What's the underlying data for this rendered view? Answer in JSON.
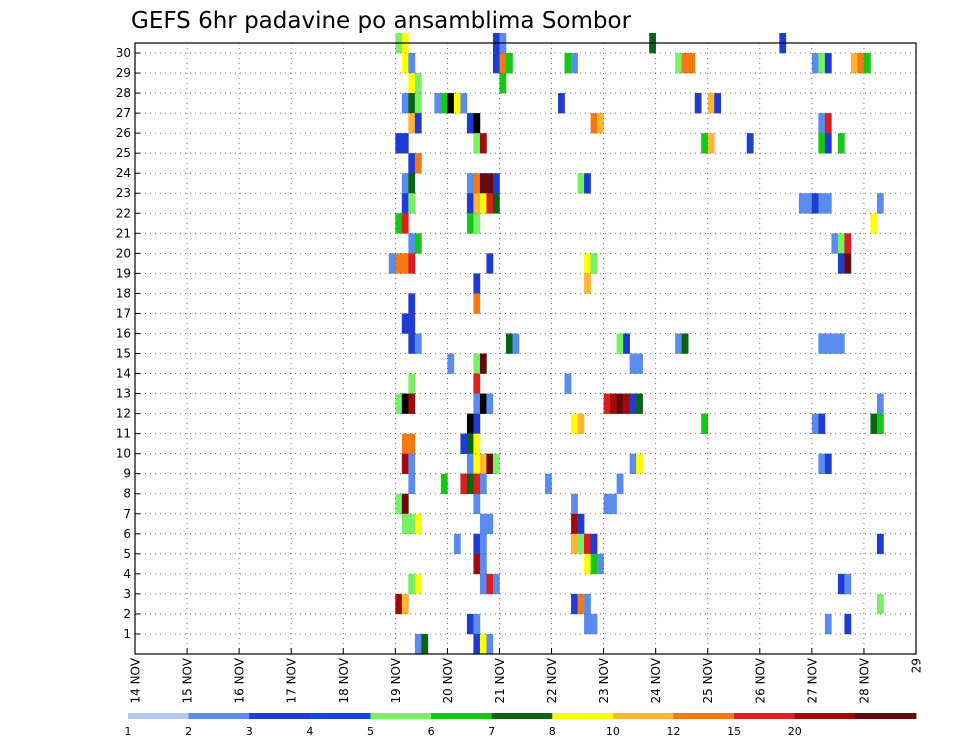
{
  "chart_data": {
    "type": "heatmap",
    "title": "GEFS 6hr padavine po ansamblima Sombor",
    "xlabel": "",
    "ylabel": "",
    "x_tick_labels": [
      "14 NOV",
      "15 NOV",
      "16 NOV",
      "17 NOV",
      "18 NOV",
      "19 NOV",
      "20 NOV",
      "21 NOV",
      "22 NOV",
      "23 NOV",
      "24 NOV",
      "25 NOV",
      "26 NOV",
      "27 NOV",
      "28 NOV",
      "29"
    ],
    "y_tick_labels": [
      "1",
      "2",
      "3",
      "4",
      "5",
      "6",
      "7",
      "8",
      "9",
      "10",
      "11",
      "12",
      "13",
      "14",
      "15",
      "16",
      "17",
      "18",
      "19",
      "20",
      "21",
      "22",
      "23",
      "24",
      "25",
      "26",
      "27",
      "28",
      "29",
      "30"
    ],
    "x_range_steps": [
      0,
      60
    ],
    "y_range": [
      0,
      30
    ],
    "grid": true,
    "legend": {
      "position": "bottom",
      "labels": [
        "1",
        "2",
        "3",
        "4",
        "5",
        "6",
        "7",
        "8",
        "10",
        "12",
        "15",
        "20"
      ],
      "colors": [
        "#b4c8f5",
        "#5a8cf0",
        "#1e3cd2",
        "#1446dc",
        "#78f064",
        "#14c814",
        "#0a6414",
        "#ffff00",
        "#ffb432",
        "#f57814",
        "#dc1e1e",
        "#a00a0a",
        "#640a0a"
      ]
    },
    "palette": [
      "#b4c8f5",
      "#5a8cf0",
      "#1e3cd2",
      "#78f064",
      "#14c814",
      "#0a6414",
      "#ffff00",
      "#ffb432",
      "#f57814",
      "#dc1e1e",
      "#a00a0a",
      "#640a0a"
    ],
    "cells": [
      [
        40,
        30,
        3
      ],
      [
        41,
        30,
        6
      ],
      [
        55,
        30,
        2
      ],
      [
        56,
        30,
        1
      ],
      [
        79,
        30,
        5
      ],
      [
        99,
        30,
        2
      ],
      [
        41,
        29,
        6
      ],
      [
        42,
        29,
        1
      ],
      [
        55,
        29,
        2
      ],
      [
        56,
        29,
        8
      ],
      [
        57,
        29,
        4
      ],
      [
        66,
        29,
        4
      ],
      [
        67,
        29,
        1
      ],
      [
        83,
        29,
        3
      ],
      [
        84,
        29,
        8
      ],
      [
        85,
        29,
        8
      ],
      [
        104,
        29,
        1
      ],
      [
        105,
        29,
        3
      ],
      [
        106,
        29,
        2
      ],
      [
        110,
        29,
        7
      ],
      [
        111,
        29,
        8
      ],
      [
        112,
        29,
        4
      ],
      [
        42,
        28,
        6
      ],
      [
        43,
        28,
        3
      ],
      [
        56,
        28,
        4
      ],
      [
        41,
        27,
        1
      ],
      [
        42,
        27,
        5
      ],
      [
        43,
        27,
        3
      ],
      [
        46,
        27,
        1
      ],
      [
        47,
        27,
        4
      ],
      [
        48,
        27,
        12
      ],
      [
        49,
        27,
        6
      ],
      [
        50,
        27,
        1
      ],
      [
        65,
        27,
        2
      ],
      [
        86,
        27,
        2
      ],
      [
        88,
        27,
        7
      ],
      [
        89,
        27,
        2
      ],
      [
        42,
        26,
        7
      ],
      [
        43,
        26,
        2
      ],
      [
        51,
        26,
        2
      ],
      [
        52,
        26,
        12
      ],
      [
        70,
        26,
        8
      ],
      [
        71,
        26,
        7
      ],
      [
        105,
        26,
        1
      ],
      [
        106,
        26,
        9
      ],
      [
        40,
        25,
        2
      ],
      [
        41,
        25,
        2
      ],
      [
        52,
        25,
        3
      ],
      [
        53,
        25,
        10
      ],
      [
        87,
        25,
        4
      ],
      [
        88,
        25,
        7
      ],
      [
        94,
        25,
        2
      ],
      [
        105,
        25,
        4
      ],
      [
        106,
        25,
        2
      ],
      [
        108,
        25,
        4
      ],
      [
        42,
        24,
        2
      ],
      [
        43,
        24,
        8
      ],
      [
        41,
        23,
        1
      ],
      [
        42,
        23,
        5
      ],
      [
        51,
        23,
        1
      ],
      [
        52,
        23,
        8
      ],
      [
        53,
        23,
        11
      ],
      [
        54,
        23,
        11
      ],
      [
        55,
        23,
        2
      ],
      [
        68,
        23,
        3
      ],
      [
        69,
        23,
        2
      ],
      [
        41,
        22,
        2
      ],
      [
        42,
        22,
        3
      ],
      [
        51,
        22,
        2
      ],
      [
        52,
        22,
        7
      ],
      [
        53,
        22,
        6
      ],
      [
        54,
        22,
        9
      ],
      [
        55,
        22,
        5
      ],
      [
        102,
        22,
        1
      ],
      [
        103,
        22,
        1
      ],
      [
        104,
        22,
        2
      ],
      [
        105,
        22,
        1
      ],
      [
        106,
        22,
        1
      ],
      [
        114,
        22,
        1
      ],
      [
        40,
        21,
        4
      ],
      [
        41,
        21,
        9
      ],
      [
        51,
        21,
        4
      ],
      [
        52,
        21,
        3
      ],
      [
        113,
        21,
        6
      ],
      [
        42,
        20,
        1
      ],
      [
        43,
        20,
        4
      ],
      [
        107,
        20,
        1
      ],
      [
        108,
        20,
        3
      ],
      [
        109,
        20,
        9
      ],
      [
        39,
        19,
        1
      ],
      [
        40,
        19,
        8
      ],
      [
        41,
        19,
        8
      ],
      [
        42,
        19,
        9
      ],
      [
        54,
        19,
        2
      ],
      [
        69,
        19,
        6
      ],
      [
        70,
        19,
        3
      ],
      [
        108,
        19,
        2
      ],
      [
        109,
        19,
        11
      ],
      [
        69,
        18,
        7
      ],
      [
        52,
        18,
        2
      ],
      [
        42,
        17,
        2
      ],
      [
        52,
        17,
        8
      ],
      [
        41,
        16,
        2
      ],
      [
        42,
        16,
        2
      ],
      [
        42,
        15,
        2
      ],
      [
        43,
        15,
        1
      ],
      [
        57,
        15,
        5
      ],
      [
        58,
        15,
        1
      ],
      [
        74,
        15,
        3
      ],
      [
        75,
        15,
        2
      ],
      [
        83,
        15,
        1
      ],
      [
        84,
        15,
        5
      ],
      [
        105,
        15,
        1
      ],
      [
        106,
        15,
        1
      ],
      [
        107,
        15,
        1
      ],
      [
        108,
        15,
        1
      ],
      [
        48,
        14,
        1
      ],
      [
        52,
        14,
        3
      ],
      [
        53,
        14,
        11
      ],
      [
        76,
        14,
        1
      ],
      [
        77,
        14,
        1
      ],
      [
        42,
        13,
        3
      ],
      [
        52,
        13,
        9
      ],
      [
        66,
        13,
        1
      ],
      [
        40,
        12,
        3
      ],
      [
        41,
        12,
        12
      ],
      [
        42,
        12,
        10
      ],
      [
        52,
        12,
        1
      ],
      [
        53,
        12,
        12
      ],
      [
        54,
        12,
        1
      ],
      [
        72,
        12,
        9
      ],
      [
        73,
        12,
        10
      ],
      [
        74,
        12,
        11
      ],
      [
        75,
        12,
        10
      ],
      [
        76,
        12,
        2
      ],
      [
        77,
        12,
        5
      ],
      [
        114,
        12,
        1
      ],
      [
        51,
        11,
        12
      ],
      [
        52,
        11,
        2
      ],
      [
        67,
        11,
        6
      ],
      [
        68,
        11,
        7
      ],
      [
        87,
        11,
        4
      ],
      [
        104,
        11,
        1
      ],
      [
        105,
        11,
        2
      ],
      [
        113,
        11,
        5
      ],
      [
        114,
        11,
        4
      ],
      [
        41,
        10,
        8
      ],
      [
        42,
        10,
        8
      ],
      [
        50,
        10,
        2
      ],
      [
        51,
        10,
        5
      ],
      [
        52,
        10,
        6
      ],
      [
        41,
        9,
        10
      ],
      [
        42,
        9,
        1
      ],
      [
        51,
        9,
        1
      ],
      [
        52,
        9,
        6
      ],
      [
        53,
        9,
        7
      ],
      [
        54,
        9,
        11
      ],
      [
        55,
        9,
        3
      ],
      [
        76,
        9,
        1
      ],
      [
        77,
        9,
        6
      ],
      [
        105,
        9,
        1
      ],
      [
        106,
        9,
        2
      ],
      [
        42,
        8,
        1
      ],
      [
        47,
        8,
        4
      ],
      [
        50,
        8,
        9
      ],
      [
        51,
        8,
        5
      ],
      [
        52,
        8,
        9
      ],
      [
        53,
        8,
        1
      ],
      [
        63,
        8,
        1
      ],
      [
        74,
        8,
        1
      ],
      [
        40,
        7,
        3
      ],
      [
        41,
        7,
        11
      ],
      [
        52,
        7,
        1
      ],
      [
        67,
        7,
        1
      ],
      [
        72,
        7,
        1
      ],
      [
        73,
        7,
        1
      ],
      [
        41,
        6,
        3
      ],
      [
        42,
        6,
        3
      ],
      [
        43,
        6,
        6
      ],
      [
        53,
        6,
        1
      ],
      [
        54,
        6,
        1
      ],
      [
        67,
        6,
        10
      ],
      [
        68,
        6,
        2
      ],
      [
        49,
        5,
        1
      ],
      [
        52,
        5,
        2
      ],
      [
        53,
        5,
        1
      ],
      [
        67,
        5,
        7
      ],
      [
        68,
        5,
        3
      ],
      [
        69,
        5,
        9
      ],
      [
        70,
        5,
        2
      ],
      [
        114,
        5,
        2
      ],
      [
        52,
        4,
        10
      ],
      [
        53,
        4,
        1
      ],
      [
        69,
        4,
        6
      ],
      [
        70,
        4,
        4
      ],
      [
        71,
        4,
        1
      ],
      [
        42,
        3,
        3
      ],
      [
        43,
        3,
        6
      ],
      [
        53,
        3,
        1
      ],
      [
        54,
        3,
        9
      ],
      [
        55,
        3,
        1
      ],
      [
        108,
        3,
        2
      ],
      [
        109,
        3,
        1
      ],
      [
        40,
        2,
        10
      ],
      [
        41,
        2,
        7
      ],
      [
        67,
        2,
        2
      ],
      [
        68,
        2,
        8
      ],
      [
        69,
        2,
        1
      ],
      [
        114,
        2,
        3
      ],
      [
        51,
        1,
        2
      ],
      [
        52,
        1,
        1
      ],
      [
        69,
        1,
        1
      ],
      [
        70,
        1,
        1
      ],
      [
        106,
        1,
        1
      ],
      [
        109,
        1,
        2
      ],
      [
        43,
        0,
        1
      ],
      [
        44,
        0,
        5
      ],
      [
        52,
        0,
        2
      ],
      [
        53,
        0,
        6
      ],
      [
        54,
        0,
        1
      ]
    ]
  }
}
